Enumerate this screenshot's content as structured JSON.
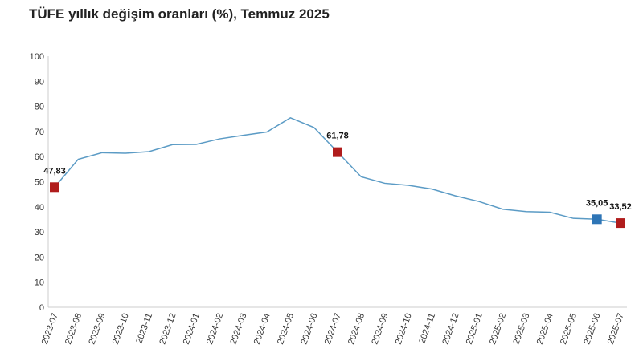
{
  "chart_data": {
    "type": "line",
    "title": "TÜFE yıllık değişim oranları (%), Temmuz 2025",
    "xlabel": "",
    "ylabel": "",
    "ylim": [
      0,
      100
    ],
    "yticks": [
      "0",
      "10",
      "20",
      "30",
      "40",
      "50",
      "60",
      "70",
      "80",
      "90",
      "100"
    ],
    "grid": false,
    "categories": [
      "2023-07",
      "2023-08",
      "2023-09",
      "2023-10",
      "2023-11",
      "2023-12",
      "2024-01",
      "2024-02",
      "2024-03",
      "2024-04",
      "2024-05",
      "2024-06",
      "2024-07",
      "2024-08",
      "2024-09",
      "2024-10",
      "2024-11",
      "2024-12",
      "2025-01",
      "2025-02",
      "2025-03",
      "2025-04",
      "2025-05",
      "2025-06",
      "2025-07"
    ],
    "series": [
      {
        "name": "TÜFE",
        "color": "#5b9bc5",
        "values": [
          47.83,
          58.94,
          61.53,
          61.36,
          61.98,
          64.77,
          64.86,
          67.07,
          68.5,
          69.8,
          75.45,
          71.6,
          61.78,
          51.97,
          49.38,
          48.58,
          47.09,
          44.38,
          42.12,
          39.05,
          38.1,
          37.86,
          35.41,
          35.05,
          33.52
        ]
      }
    ],
    "highlights": [
      {
        "index": 0,
        "label": "47,83",
        "color": "#b01c1c"
      },
      {
        "index": 12,
        "label": "61,78",
        "color": "#b01c1c"
      },
      {
        "index": 23,
        "label": "35,05",
        "color": "#2e75b6"
      },
      {
        "index": 24,
        "label": "33,52",
        "color": "#b01c1c"
      }
    ]
  }
}
